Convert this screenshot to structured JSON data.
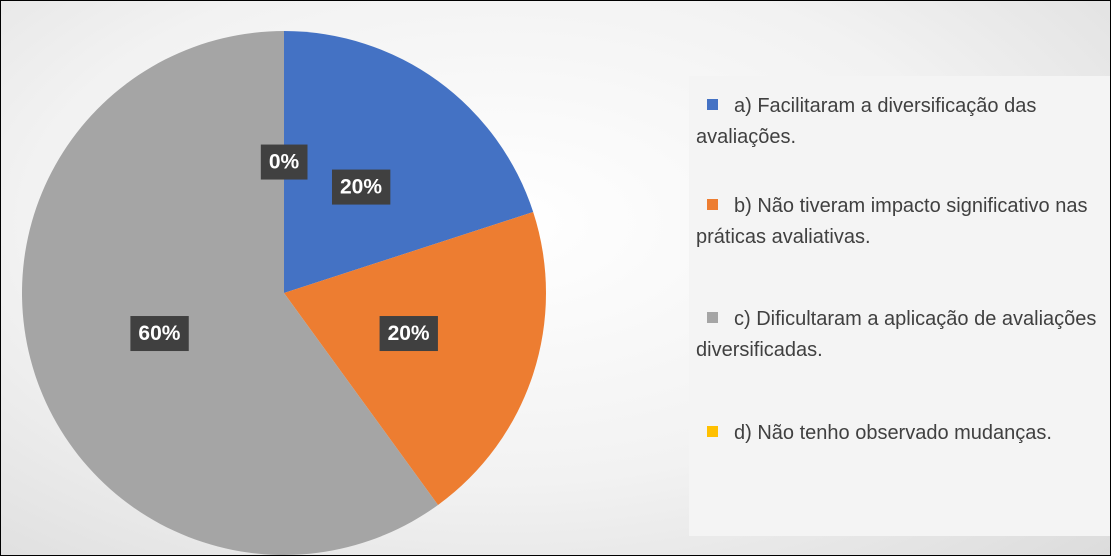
{
  "chart_data": {
    "type": "pie",
    "categories": [
      "a) Facilitaram a diversificação das avaliações.",
      "b) Não tiveram impacto significativo nas práticas avaliativas.",
      "c) Dificultaram a aplicação de avaliações diversificadas.",
      "d) Não tenho observado mudanças."
    ],
    "values": [
      20,
      20,
      60,
      0
    ],
    "value_labels": [
      "20%",
      "20%",
      "60%",
      "0%"
    ],
    "colors": [
      "#4472c4",
      "#ed7d31",
      "#a5a5a5",
      "#ffc000"
    ],
    "legend": "right"
  }
}
